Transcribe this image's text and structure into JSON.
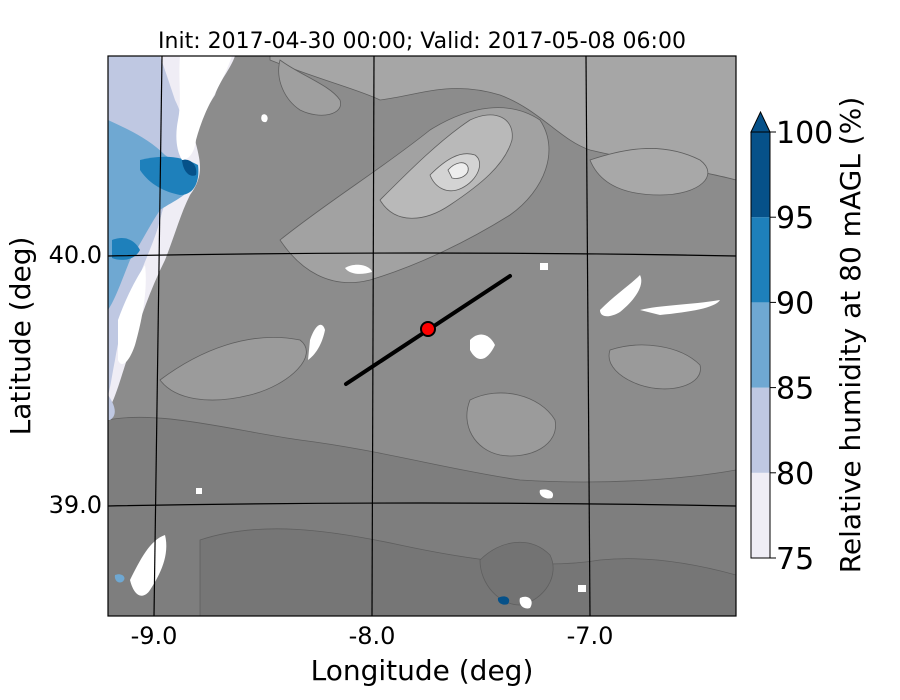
{
  "map": {
    "title": "Init: 2017-04-30 00:00; Valid: 2017-05-08 06:00",
    "xlabel": "Longitude (deg)",
    "ylabel": "Latitude (deg)",
    "x_ticks": [
      "-9.0",
      "-8.0",
      "-7.0"
    ],
    "y_ticks": [
      "40.0",
      "39.0"
    ],
    "terrain_color": "#8c8c8c",
    "transect_color": "#000000",
    "marker_color": "#ff0000"
  },
  "colorbar": {
    "label": "Relative humidity at 80 mAGL (%)",
    "ticks": [
      "75",
      "80",
      "85",
      "90",
      "95",
      "100"
    ],
    "levels": [
      75,
      80,
      85,
      90,
      95,
      100
    ],
    "colors": [
      "#efedf5",
      "#bfc8e2",
      "#6fa8d2",
      "#1e80bb",
      "#065189"
    ],
    "extend": "max"
  }
}
